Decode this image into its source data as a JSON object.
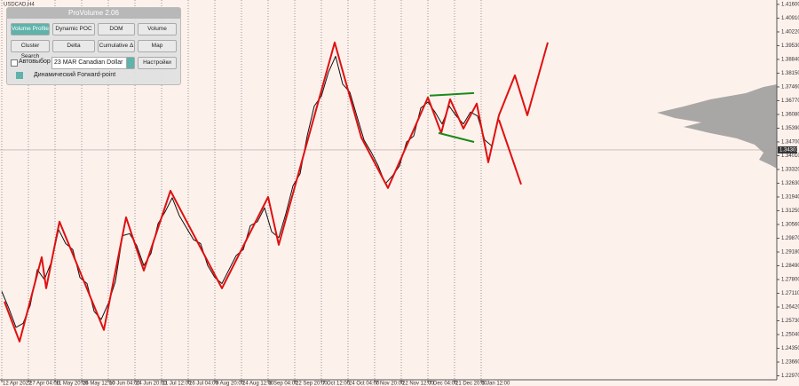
{
  "chart_data": {
    "type": "line",
    "title": "USDCAD,H4",
    "xlim": [
      -1,
      436.5
    ],
    "xticks": [
      {
        "value": 0,
        "label": "12 Apr 2022"
      },
      {
        "value": 15,
        "label": "27 Apr 04:00"
      },
      {
        "value": 30,
        "label": "11 May 20:00"
      },
      {
        "value": 45,
        "label": "26 May 12:00"
      },
      {
        "value": 60,
        "label": "10 Jun 04:00"
      },
      {
        "value": 75,
        "label": "24 Jun 20:00"
      },
      {
        "value": 90,
        "label": "11 Jul 12:00"
      },
      {
        "value": 105,
        "label": "26 Jul 04:00"
      },
      {
        "value": 120,
        "label": "9 Aug 20:00"
      },
      {
        "value": 135,
        "label": "24 Aug 12:00"
      },
      {
        "value": 150,
        "label": "8 Sep 04:00"
      },
      {
        "value": 165,
        "label": "22 Sep 20:00"
      },
      {
        "value": 180,
        "label": "7 Oct 12:00"
      },
      {
        "value": 195,
        "label": "24 Oct 04:00"
      },
      {
        "value": 210,
        "label": "7 Nov 20:00"
      },
      {
        "value": 225,
        "label": "22 Nov 12:00"
      },
      {
        "value": 240,
        "label": "7 Dec 04:00"
      },
      {
        "value": 255,
        "label": "21 Dec 20:00"
      },
      {
        "value": 270,
        "label": "5 Jan 12:00"
      }
    ],
    "ylim": [
      1.2277,
      1.4182
    ],
    "yticks": [
      {
        "value": 1.416,
        "label": "1.41600"
      },
      {
        "value": 1.4091,
        "label": "1.40910"
      },
      {
        "value": 1.4022,
        "label": "1.40220"
      },
      {
        "value": 1.3953,
        "label": "1.39530"
      },
      {
        "value": 1.3884,
        "label": "1.38840"
      },
      {
        "value": 1.3815,
        "label": "1.38150"
      },
      {
        "value": 1.3746,
        "label": "1.37460"
      },
      {
        "value": 1.3677,
        "label": "1.36770"
      },
      {
        "value": 1.3608,
        "label": "1.36080"
      },
      {
        "value": 1.3539,
        "label": "1.35390"
      },
      {
        "value": 1.347,
        "label": "1.34700"
      },
      {
        "value": 1.3401,
        "label": "1.34010"
      },
      {
        "value": 1.3332,
        "label": "1.33320"
      },
      {
        "value": 1.3263,
        "label": "1.32630"
      },
      {
        "value": 1.3194,
        "label": "1.31940"
      },
      {
        "value": 1.3125,
        "label": "1.31250"
      },
      {
        "value": 1.3056,
        "label": "1.30560"
      },
      {
        "value": 1.2987,
        "label": "1.29870"
      },
      {
        "value": 1.2918,
        "label": "1.29180"
      },
      {
        "value": 1.2849,
        "label": "1.28490"
      },
      {
        "value": 1.278,
        "label": "1.27800"
      },
      {
        "value": 1.2711,
        "label": "1.27110"
      },
      {
        "value": 1.2642,
        "label": "1.26420"
      },
      {
        "value": 1.2573,
        "label": "1.25730"
      },
      {
        "value": 1.2504,
        "label": "1.25040"
      },
      {
        "value": 1.2435,
        "label": "1.24350"
      },
      {
        "value": 1.2366,
        "label": "1.23660"
      },
      {
        "value": 1.2297,
        "label": "1.22970"
      }
    ],
    "grid": true,
    "last_price": 1.34301,
    "series": [
      {
        "color": "#111111",
        "x": [
          0,
          4,
          8,
          12,
          16,
          20,
          24,
          28,
          32,
          36,
          40,
          44,
          48,
          52,
          56,
          60,
          64,
          68,
          72,
          76,
          80,
          84,
          88,
          92,
          96,
          100,
          104,
          108,
          112,
          116,
          120,
          124,
          128,
          132,
          136,
          140,
          144,
          148,
          152,
          156,
          160,
          164,
          168,
          172,
          176,
          180,
          184,
          188,
          192,
          196,
          200,
          204,
          208,
          212,
          216,
          220,
          224,
          228,
          232,
          236,
          240,
          244,
          248,
          252,
          256,
          260,
          264,
          268,
          272,
          276
        ],
        "values": [
          1.272,
          1.2635,
          1.254,
          1.256,
          1.265,
          1.283,
          1.278,
          1.287,
          1.303,
          1.296,
          1.293,
          1.279,
          1.276,
          1.262,
          1.258,
          1.266,
          1.277,
          1.3,
          1.301,
          1.295,
          1.285,
          1.291,
          1.306,
          1.312,
          1.319,
          1.31,
          1.304,
          1.298,
          1.296,
          1.285,
          1.279,
          1.276,
          1.283,
          1.29,
          1.293,
          1.305,
          1.307,
          1.314,
          1.302,
          1.299,
          1.311,
          1.325,
          1.331,
          1.35,
          1.365,
          1.37,
          1.382,
          1.39,
          1.376,
          1.372,
          1.36,
          1.348,
          1.342,
          1.335,
          1.326,
          1.33,
          1.335,
          1.347,
          1.35,
          1.364,
          1.367,
          1.362,
          1.356,
          1.365,
          1.36,
          1.356,
          1.362,
          1.36,
          1.348,
          1.345
        ]
      },
      {
        "color": "#e01010",
        "x": [
          1.5,
          10,
          22.5,
          25,
          32.5,
          57.5,
          70,
          80,
          95,
          124,
          150,
          156,
          187.5,
          202.5,
          217.5,
          240,
          247.5,
          252.5,
          260,
          267.5,
          274,
          280,
          289,
          296,
          307.5
        ],
        "values": [
          1.2669,
          1.2469,
          1.2892,
          1.2736,
          1.307,
          1.2527,
          1.3092,
          1.2825,
          1.3225,
          1.2736,
          1.3194,
          1.2954,
          1.3969,
          1.3492,
          1.3239,
          1.3693,
          1.3515,
          1.3684,
          1.3537,
          1.3662,
          1.3368,
          1.3604,
          1.3804,
          1.3604,
          1.3969
        ]
      },
      {
        "color": "#e01010",
        "x": [
          280,
          292.5
        ],
        "values": [
          1.3581,
          1.3257
        ]
      },
      {
        "color": "#1a8a1a",
        "x": [
          241,
          266
        ],
        "values": [
          1.3702,
          1.3715
        ]
      },
      {
        "color": "#1a8a1a",
        "x": [
          246,
          266
        ],
        "values": [
          1.3515,
          1.347
        ]
      }
    ]
  },
  "panel": {
    "title": "ProVolume 2.06",
    "buttons": [
      "Volume Profile",
      "Dynamic POC",
      "DOM",
      "Volume",
      "Cluster Search",
      "Delta",
      "Cumulative Δ",
      "Map"
    ],
    "auto": "Автовыбор",
    "instrument": "23 MAR Canadian Dollar",
    "settings": "Настройки",
    "forward": "Динамический Forward-point"
  }
}
